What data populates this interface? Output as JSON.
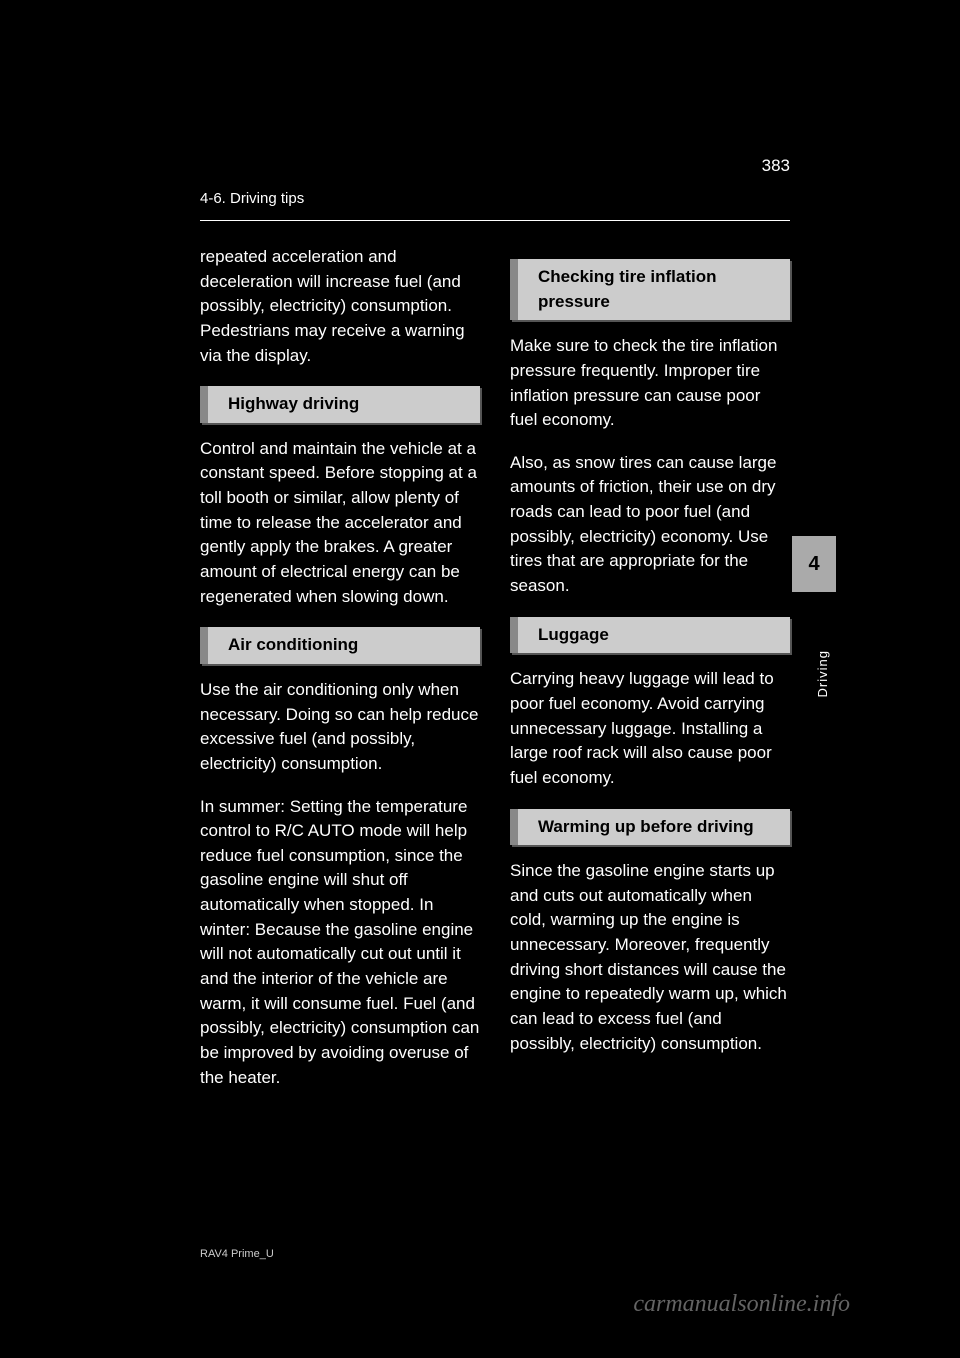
{
  "header": {
    "page_number": "383",
    "chapter_section": "4-6. Driving tips"
  },
  "tab": {
    "number": "4",
    "label": "Driving"
  },
  "left_column": {
    "intro_para": "repeated acceleration and deceleration will increase fuel (and possibly, electricity) consumption. Pedestrians may receive a warning via the display.",
    "highway_heading": "Highway driving",
    "highway_para": "Control and maintain the vehicle at a constant speed. Before stopping at a toll booth or similar, allow plenty of time to release the accelerator and gently apply the brakes. A greater amount of electrical energy can be regenerated when slowing down.",
    "ac_heading": "Air conditioning",
    "ac_para": "Use the air conditioning only when necessary. Doing so can help reduce excessive fuel (and possibly, electricity) consumption.",
    "ac_para2": "In summer: Setting the temperature control to R/C AUTO mode will help reduce fuel consumption, since the gasoline engine will shut off automatically when stopped. In winter: Because the gasoline engine will not automatically cut out until it and the interior of the vehicle are warm, it will consume fuel. Fuel (and possibly, electricity) consumption can be improved by avoiding overuse of the heater."
  },
  "right_column": {
    "tire_heading": "Checking tire inflation pressure",
    "tire_para": "Make sure to check the tire inflation pressure frequently. Improper tire inflation pressure can cause poor fuel economy.",
    "tire_para2": "Also, as snow tires can cause large amounts of friction, their use on dry roads can lead to poor fuel (and possibly, electricity) economy. Use tires that are appropriate for the season.",
    "luggage_heading": "Luggage",
    "luggage_para": "Carrying heavy luggage will lead to poor fuel economy. Avoid carrying unnecessary luggage. Installing a large roof rack will also cause poor fuel economy.",
    "warmup_heading": "Warming up before driving",
    "warmup_para": "Since the gasoline engine starts up and cuts out automatically when cold, warming up the engine is unnecessary. Moreover, frequently driving short distances will cause the engine to repeatedly warm up, which can lead to excess fuel (and possibly, electricity) consumption."
  },
  "footer": {
    "doc_code": "RAV4 Prime_U",
    "watermark": "carmanualsonline.info"
  },
  "colors": {
    "background": "#000000",
    "text": "#ffffff",
    "heading_bg": "#cccccc",
    "heading_text": "#000000",
    "heading_border": "#888888",
    "tab_bg": "#aaaaaa",
    "watermark_color": "#646464"
  }
}
